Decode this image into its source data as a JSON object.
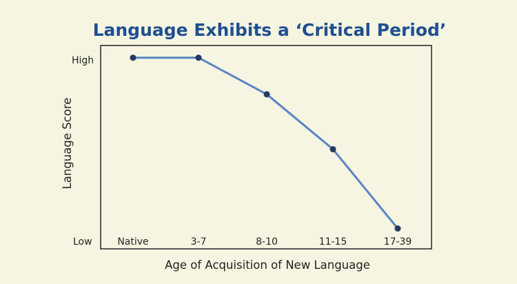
{
  "chart_data": {
    "type": "line",
    "title": "Language Exhibits a ‘Critical Period’",
    "xlabel": "Age of Acquisition of New Language",
    "ylabel": "Language Score",
    "categories": [
      "Native",
      "3-7",
      "8-10",
      "11-15",
      "17-39"
    ],
    "y_tick_labels": {
      "high": "High",
      "low": "Low"
    },
    "ylim": [
      0,
      100
    ],
    "series": [
      {
        "values": [
          94,
          94,
          76,
          49,
          10
        ]
      }
    ],
    "grid": false,
    "legend": "none",
    "colors": {
      "background": "#f6f5e2",
      "title": "#1f4f8f",
      "line": "#5b84c4",
      "marker": "#233a63",
      "frame": "#222222",
      "text": "#222222"
    }
  }
}
